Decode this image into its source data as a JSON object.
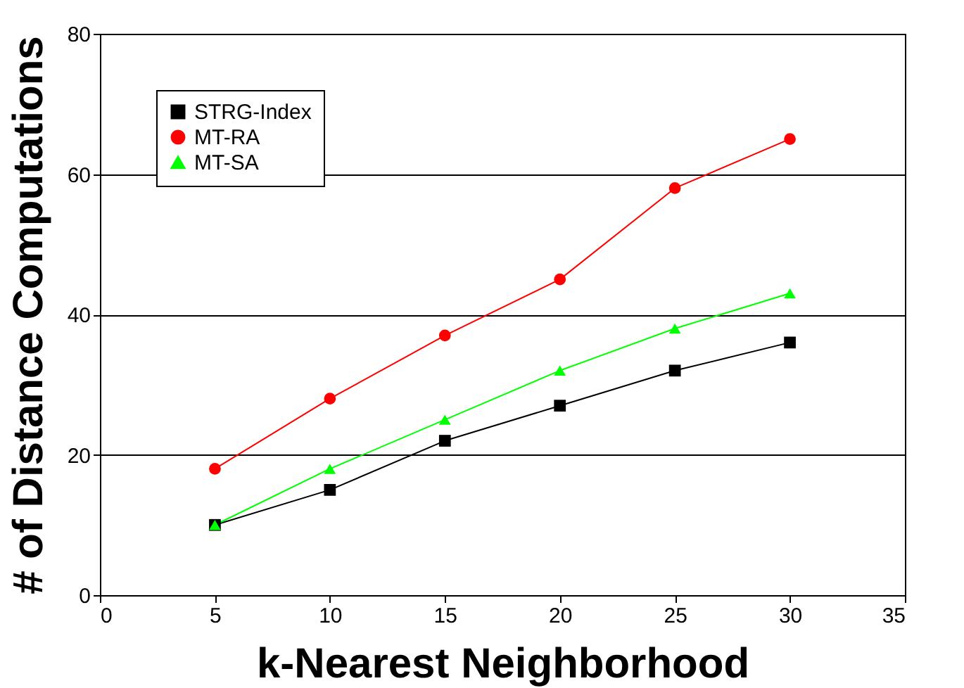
{
  "chart_data": {
    "type": "line",
    "xlabel": "k-Nearest Neighborhood",
    "ylabel": "# of Distance Computations",
    "x": [
      5,
      10,
      15,
      20,
      25,
      30
    ],
    "series": [
      {
        "name": "STRG-Index",
        "color": "#000000",
        "marker": "square",
        "values": [
          10,
          15,
          22,
          27,
          32,
          36
        ]
      },
      {
        "name": "MT-RA",
        "color": "#ff0000",
        "marker": "circle",
        "values": [
          18,
          28,
          37,
          45,
          58,
          65
        ]
      },
      {
        "name": "MT-SA",
        "color": "#00ff00",
        "marker": "triangle",
        "values": [
          10,
          18,
          25,
          32,
          38,
          43
        ]
      }
    ],
    "xlim": [
      0,
      35
    ],
    "xticks": [
      0,
      5,
      10,
      15,
      20,
      25,
      30,
      35
    ],
    "ylim": [
      0,
      80
    ],
    "yticks": [
      0,
      20,
      40,
      60,
      80
    ],
    "grid": "y",
    "legend": "top left",
    "line_style": "solid"
  }
}
